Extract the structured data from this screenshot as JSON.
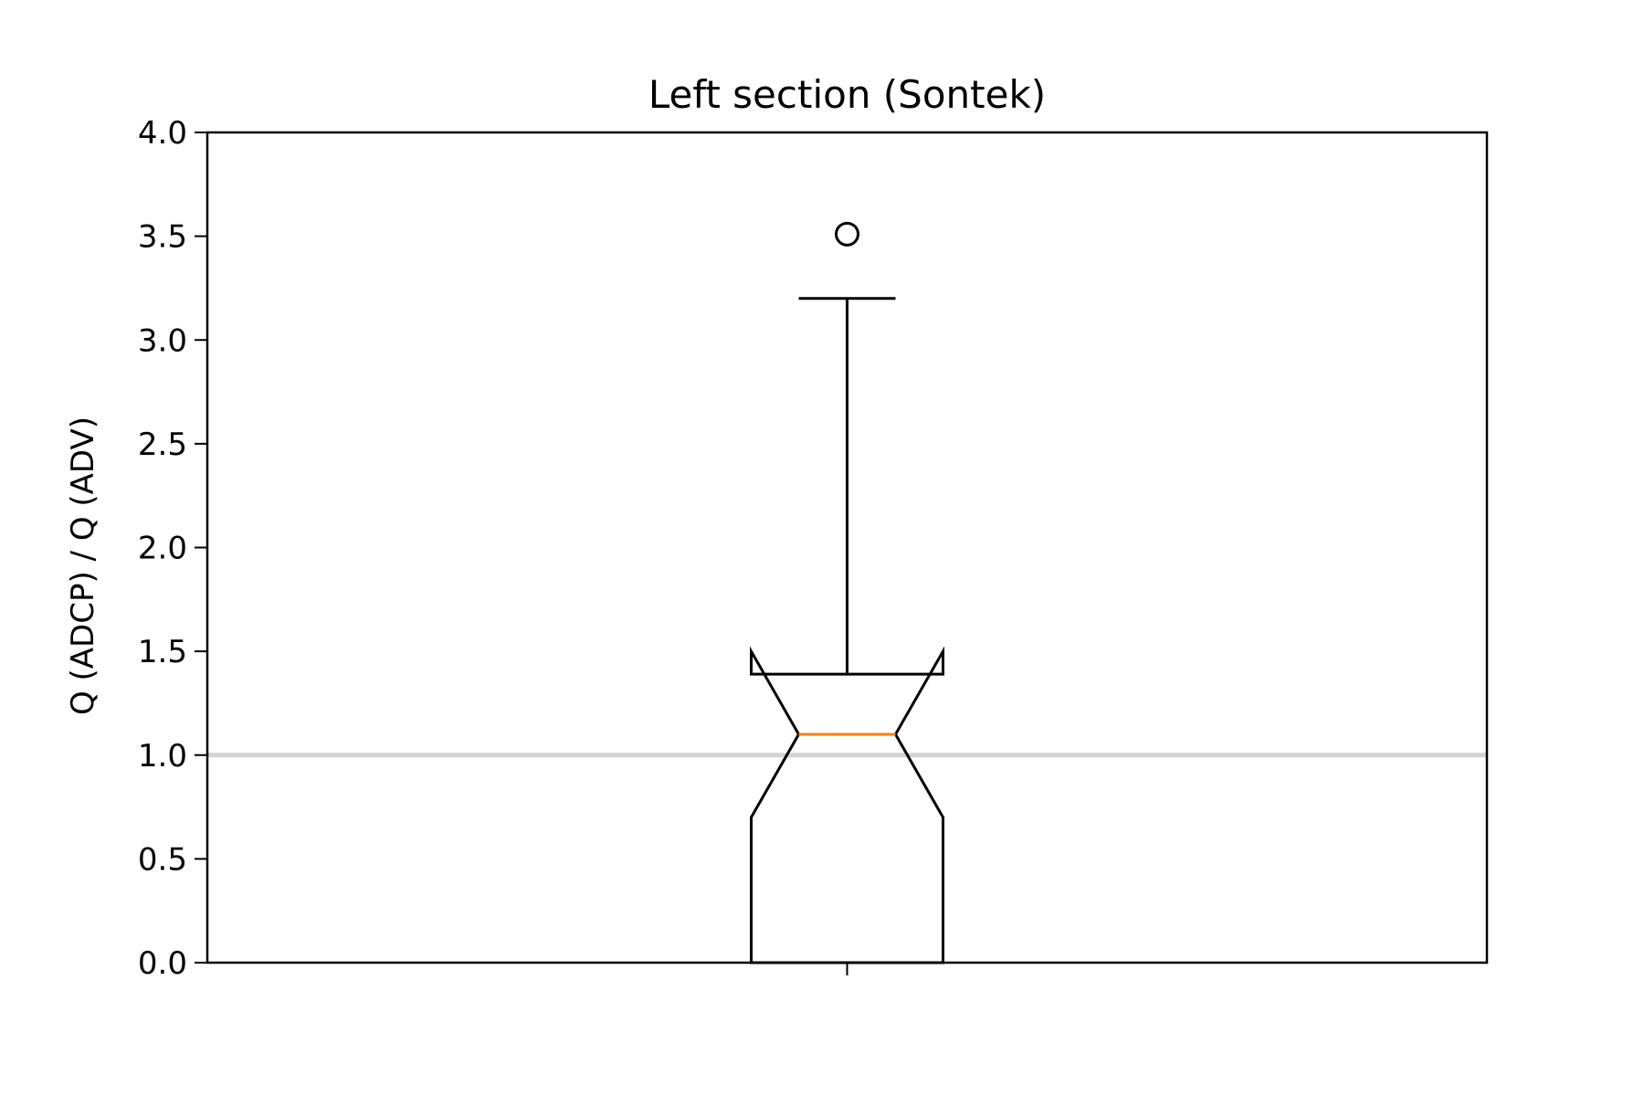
{
  "chart_data": {
    "type": "boxplot",
    "title": "Left section (Sontek)",
    "xlabel": "",
    "ylabel": "Q (ADCP) / Q (ADV)",
    "ylim": [
      0.0,
      4.0
    ],
    "yticks": [
      "0.0",
      "0.5",
      "1.0",
      "1.5",
      "2.0",
      "2.5",
      "3.0",
      "3.5",
      "4.0"
    ],
    "reference_line": 1.0,
    "notched": true,
    "grid": false,
    "boxes": [
      {
        "position": 1,
        "whisker_low": 0.0,
        "q1": 0.0,
        "notch_low": 0.7,
        "median": 1.1,
        "notch_high": 1.5,
        "q3": 1.39,
        "whisker_high": 3.2,
        "outliers": [
          3.51
        ]
      }
    ],
    "colors": {
      "box": "#000000",
      "median": "#ff7f0e",
      "reference_line": "#d3d3d3",
      "outlier": "#000000"
    }
  }
}
